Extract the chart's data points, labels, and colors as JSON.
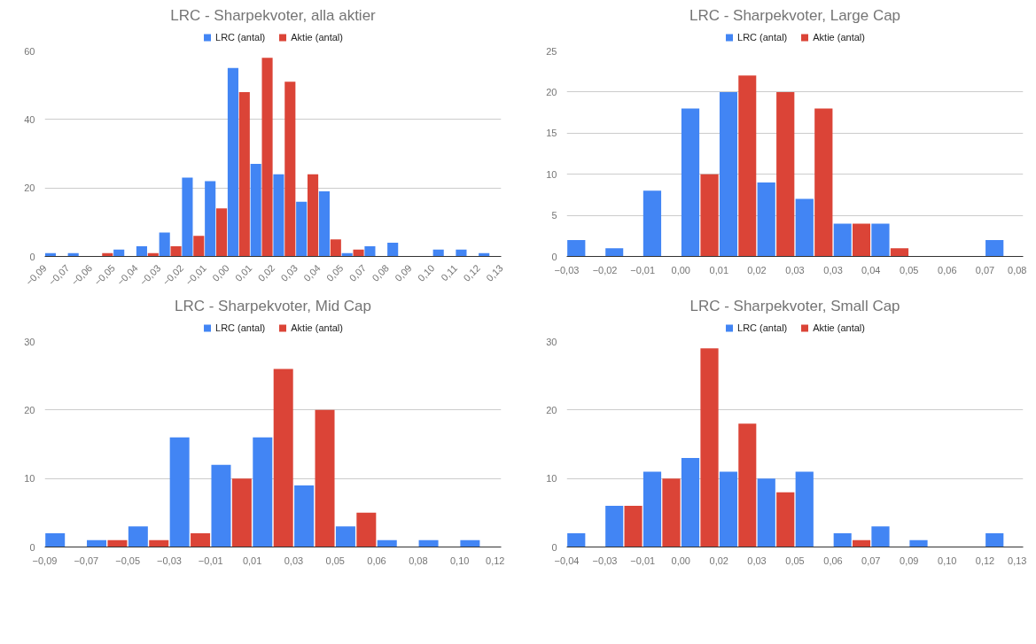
{
  "chart_data": [
    {
      "type": "histogram",
      "title": "LRC - Sharpekvoter, alla aktier",
      "legend": "top",
      "grid": "y",
      "bins": [
        -0.0852,
        -0.07445,
        -0.0637,
        -0.05295,
        -0.0422,
        -0.03145,
        -0.0207,
        -0.00995,
        0.0008,
        0.01155,
        0.0223,
        0.03305,
        0.0438,
        0.05455,
        0.0653,
        0.07605,
        0.0868,
        0.09755,
        0.1083,
        0.11905,
        0.1298
      ],
      "series": [
        {
          "name": "LRC (antal)",
          "color": "#4285f4",
          "values": [
            1,
            1,
            0,
            2,
            3,
            7,
            23,
            22,
            55,
            27,
            24,
            16,
            19,
            1,
            3,
            4,
            0,
            2,
            2,
            1
          ]
        },
        {
          "name": "Aktie (antal)",
          "color": "#db4437",
          "values": [
            0,
            0,
            1,
            0,
            1,
            3,
            6,
            14,
            48,
            58,
            51,
            24,
            5,
            2,
            0,
            0,
            0,
            0,
            0,
            0
          ]
        }
      ],
      "xlim": [
        -0.0852,
        0.1298
      ],
      "xticks": [
        {
          "value": -0.0852,
          "label": "−0,09"
        },
        {
          "value": -0.07445,
          "label": "−0,07"
        },
        {
          "value": -0.0637,
          "label": "−0,06"
        },
        {
          "value": -0.05295,
          "label": "−0,05"
        },
        {
          "value": -0.0422,
          "label": "−0,04"
        },
        {
          "value": -0.03145,
          "label": "−0,03"
        },
        {
          "value": -0.0207,
          "label": "−0,02"
        },
        {
          "value": -0.00995,
          "label": "−0,01"
        },
        {
          "value": 0.0008,
          "label": "0,00"
        },
        {
          "value": 0.01155,
          "label": "0,01"
        },
        {
          "value": 0.0223,
          "label": "0,02"
        },
        {
          "value": 0.03305,
          "label": "0,03"
        },
        {
          "value": 0.0438,
          "label": "0,04"
        },
        {
          "value": 0.05455,
          "label": "0,05"
        },
        {
          "value": 0.0653,
          "label": "0,07"
        },
        {
          "value": 0.07605,
          "label": "0,08"
        },
        {
          "value": 0.0868,
          "label": "0,09"
        },
        {
          "value": 0.09755,
          "label": "0,10"
        },
        {
          "value": 0.1083,
          "label": "0,11"
        },
        {
          "value": 0.11905,
          "label": "0,12"
        },
        {
          "value": 0.1298,
          "label": "0,13"
        }
      ],
      "ylim": [
        0,
        60
      ],
      "yticks": [
        0,
        20,
        40,
        60
      ]
    },
    {
      "type": "histogram",
      "title": "LRC - Sharpekvoter, Large Cap",
      "legend": "top",
      "grid": "y",
      "bins": [
        -0.03,
        -0.0208,
        -0.0117,
        -0.0025,
        0.0067,
        0.0158,
        0.025,
        0.0342,
        0.0433,
        0.0525,
        0.0617,
        0.0708,
        0.08
      ],
      "series": [
        {
          "name": "LRC (antal)",
          "color": "#4285f4",
          "values": [
            2,
            1,
            8,
            18,
            20,
            9,
            7,
            4,
            4,
            0,
            0,
            2
          ]
        },
        {
          "name": "Aktie (antal)",
          "color": "#db4437",
          "values": [
            0,
            0,
            0,
            10,
            22,
            20,
            18,
            4,
            1,
            0,
            0,
            0
          ]
        }
      ],
      "xlim": [
        -0.03,
        0.08
      ],
      "xticks": [
        {
          "value": -0.03,
          "label": "−0,03"
        },
        {
          "value": -0.0208,
          "label": "−0,02"
        },
        {
          "value": -0.0117,
          "label": "−0,01"
        },
        {
          "value": -0.0025,
          "label": "0,00"
        },
        {
          "value": 0.0067,
          "label": "0,01"
        },
        {
          "value": 0.0158,
          "label": "0,02"
        },
        {
          "value": 0.025,
          "label": "0,03"
        },
        {
          "value": 0.0342,
          "label": "0,03"
        },
        {
          "value": 0.0433,
          "label": "0,04"
        },
        {
          "value": 0.0525,
          "label": "0,05"
        },
        {
          "value": 0.0617,
          "label": "0,06"
        },
        {
          "value": 0.0708,
          "label": "0,07"
        },
        {
          "value": 0.08,
          "label": "0,08"
        }
      ],
      "ylim": [
        0,
        25
      ],
      "yticks": [
        0,
        5,
        10,
        15,
        20,
        25
      ]
    },
    {
      "type": "histogram",
      "title": "LRC - Sharpekvoter, Mid Cap",
      "legend": "top",
      "grid": "y",
      "bins": [
        -0.0865,
        -0.0677,
        -0.0489,
        -0.0301,
        -0.0113,
        0.0075,
        0.0263,
        0.0451,
        0.0639,
        0.0827,
        0.1015,
        0.1203
      ],
      "series": [
        {
          "name": "LRC (antal)",
          "color": "#4285f4",
          "values": [
            2,
            1,
            3,
            16,
            12,
            16,
            9,
            3,
            1,
            1,
            1
          ]
        },
        {
          "name": "Aktie (antal)",
          "color": "#db4437",
          "values": [
            0,
            1,
            1,
            2,
            10,
            26,
            20,
            5,
            0,
            0,
            0
          ]
        }
      ],
      "xlim": [
        -0.0865,
        0.1203
      ],
      "xticks": [
        {
          "value": -0.0865,
          "label": "−0,09"
        },
        {
          "value": -0.0677,
          "label": "−0,07"
        },
        {
          "value": -0.0489,
          "label": "−0,05"
        },
        {
          "value": -0.0301,
          "label": "−0,03"
        },
        {
          "value": -0.0113,
          "label": "−0,01"
        },
        {
          "value": 0.0075,
          "label": "0,01"
        },
        {
          "value": 0.0263,
          "label": "0,03"
        },
        {
          "value": 0.0451,
          "label": "0,05"
        },
        {
          "value": 0.0639,
          "label": "0,06"
        },
        {
          "value": 0.0827,
          "label": "0,08"
        },
        {
          "value": 0.1015,
          "label": "0,10"
        },
        {
          "value": 0.1203,
          "label": "0,12"
        }
      ],
      "ylim": [
        0,
        30
      ],
      "yticks": [
        0,
        10,
        20,
        30
      ]
    },
    {
      "type": "histogram",
      "title": "LRC - Sharpekvoter, Small Cap",
      "legend": "top",
      "grid": "y",
      "bins": [
        -0.04,
        -0.0258,
        -0.0117,
        0.0025,
        0.0167,
        0.0308,
        0.045,
        0.0592,
        0.0733,
        0.0875,
        0.1017,
        0.1158,
        0.13
      ],
      "series": [
        {
          "name": "LRC (antal)",
          "color": "#4285f4",
          "values": [
            2,
            6,
            11,
            13,
            11,
            10,
            11,
            2,
            3,
            1,
            0,
            2
          ]
        },
        {
          "name": "Aktie (antal)",
          "color": "#db4437",
          "values": [
            0,
            6,
            10,
            29,
            18,
            8,
            0,
            1,
            0,
            0,
            0,
            0
          ]
        }
      ],
      "xlim": [
        -0.04,
        0.13
      ],
      "xticks": [
        {
          "value": -0.04,
          "label": "−0,04"
        },
        {
          "value": -0.0258,
          "label": "−0,03"
        },
        {
          "value": -0.0117,
          "label": "−0,01"
        },
        {
          "value": 0.0025,
          "label": "0,00"
        },
        {
          "value": 0.0167,
          "label": "0,02"
        },
        {
          "value": 0.0308,
          "label": "0,03"
        },
        {
          "value": 0.045,
          "label": "0,05"
        },
        {
          "value": 0.0592,
          "label": "0,06"
        },
        {
          "value": 0.0733,
          "label": "0,07"
        },
        {
          "value": 0.0875,
          "label": "0,09"
        },
        {
          "value": 0.1017,
          "label": "0,10"
        },
        {
          "value": 0.1158,
          "label": "0,12"
        },
        {
          "value": 0.13,
          "label": "0,13"
        }
      ],
      "ylim": [
        0,
        30
      ],
      "yticks": [
        0,
        10,
        20,
        30
      ]
    }
  ]
}
